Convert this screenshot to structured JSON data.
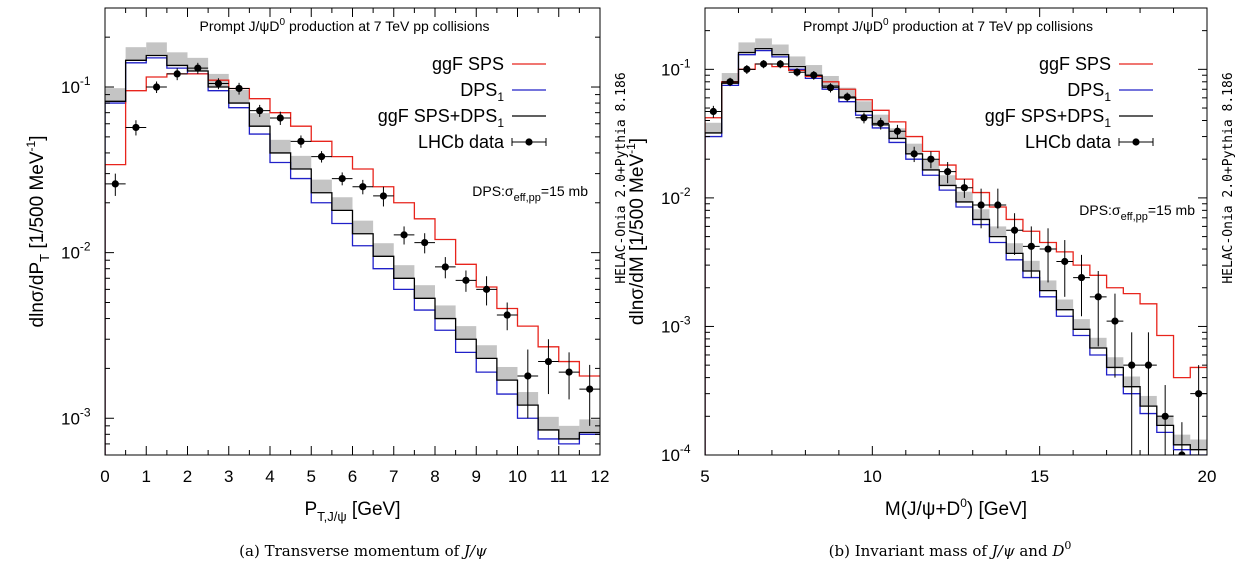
{
  "chart_data": [
    {
      "type": "line",
      "panel_title": "Prompt J/ψD⁰ production at 7 TeV pp collisions",
      "xlabel": "P_T,J/ψ [GeV]",
      "ylabel": "dlnσ/dP_T [1/500 MeV⁻¹]",
      "caption": "(a) Transverse momentum of J/ψ",
      "side_label": "HELAC-Onia 2.0+Pythia 8.186",
      "note": "DPS:σ_eff,pp=15 mb",
      "yscale": "log",
      "xlim": [
        0,
        12
      ],
      "ylim": [
        0.0006,
        0.3
      ],
      "xticks": [
        "0",
        "1",
        "2",
        "3",
        "4",
        "5",
        "6",
        "7",
        "8",
        "9",
        "10",
        "11",
        "12"
      ],
      "yticks": [
        {
          "value": 0.1,
          "label": "10^-1"
        },
        {
          "value": 0.01,
          "label": "10^-2"
        },
        {
          "value": 0.001,
          "label": "10^-3"
        }
      ],
      "bin_edges": [
        0,
        0.5,
        1,
        1.5,
        2,
        2.5,
        3,
        3.5,
        4,
        4.5,
        5,
        5.5,
        6,
        6.5,
        7,
        7.5,
        8,
        8.5,
        9,
        9.5,
        10,
        10.5,
        11,
        11.5,
        12
      ],
      "series": [
        {
          "name": "ggF SPS",
          "color": "#e8241c",
          "values": [
            0.034,
            0.095,
            0.115,
            0.12,
            0.12,
            0.11,
            0.098,
            0.085,
            0.07,
            0.058,
            0.047,
            0.038,
            0.032,
            0.025,
            0.02,
            0.016,
            0.012,
            0.0085,
            0.0062,
            0.0046,
            0.0036,
            0.0027,
            0.0022,
            0.0018
          ]
        },
        {
          "name": "DPS_1",
          "color": "#2020c8",
          "values": [
            0.08,
            0.14,
            0.15,
            0.13,
            0.12,
            0.095,
            0.075,
            0.052,
            0.035,
            0.028,
            0.02,
            0.015,
            0.011,
            0.008,
            0.006,
            0.0045,
            0.0034,
            0.0025,
            0.0019,
            0.0014,
            0.001,
            0.00075,
            0.0007,
            0.0008
          ]
        },
        {
          "name": "ggF SPS+DPS_1",
          "color": "#000000",
          "values": [
            0.082,
            0.145,
            0.155,
            0.135,
            0.125,
            0.1,
            0.08,
            0.058,
            0.04,
            0.032,
            0.023,
            0.018,
            0.013,
            0.0095,
            0.007,
            0.0053,
            0.004,
            0.003,
            0.0023,
            0.0017,
            0.0012,
            0.00085,
            0.00075,
            0.00082
          ]
        },
        {
          "name": "LHCb data",
          "color": "#000000",
          "points": [
            {
              "x": 0.25,
              "y": 0.026,
              "dy": 0.004
            },
            {
              "x": 0.75,
              "y": 0.057,
              "dy": 0.006
            },
            {
              "x": 1.25,
              "y": 0.1,
              "dy": 0.008
            },
            {
              "x": 1.75,
              "y": 0.12,
              "dy": 0.01
            },
            {
              "x": 2.25,
              "y": 0.13,
              "dy": 0.01
            },
            {
              "x": 2.75,
              "y": 0.105,
              "dy": 0.008
            },
            {
              "x": 3.25,
              "y": 0.098,
              "dy": 0.008
            },
            {
              "x": 3.75,
              "y": 0.072,
              "dy": 0.006
            },
            {
              "x": 4.25,
              "y": 0.065,
              "dy": 0.006
            },
            {
              "x": 4.75,
              "y": 0.047,
              "dy": 0.004
            },
            {
              "x": 5.25,
              "y": 0.038,
              "dy": 0.003
            },
            {
              "x": 5.75,
              "y": 0.028,
              "dy": 0.0025
            },
            {
              "x": 6.25,
              "y": 0.025,
              "dy": 0.0025
            },
            {
              "x": 6.75,
              "y": 0.022,
              "dy": 0.003
            },
            {
              "x": 7.25,
              "y": 0.0128,
              "dy": 0.0016
            },
            {
              "x": 7.75,
              "y": 0.0115,
              "dy": 0.0016
            },
            {
              "x": 8.25,
              "y": 0.0082,
              "dy": 0.0012
            },
            {
              "x": 8.75,
              "y": 0.0068,
              "dy": 0.001
            },
            {
              "x": 9.25,
              "y": 0.006,
              "dy": 0.0012
            },
            {
              "x": 9.75,
              "y": 0.0042,
              "dy": 0.0008
            },
            {
              "x": 10.25,
              "y": 0.0018,
              "dy": 0.0008
            },
            {
              "x": 10.75,
              "y": 0.0022,
              "dy": 0.0008
            },
            {
              "x": 11.25,
              "y": 0.0019,
              "dy": 0.0006
            },
            {
              "x": 11.75,
              "y": 0.0015,
              "dy": 0.0006
            }
          ]
        }
      ]
    },
    {
      "type": "line",
      "panel_title": "Prompt J/ψD⁰ production at 7 TeV pp collisions",
      "xlabel": "M(J/ψ+D⁰) [GeV]",
      "ylabel": "dlnσ/dM [1/500 MeV⁻¹]",
      "caption": "(b) Invariant mass of J/ψ and D⁰",
      "side_label": "HELAC-Onia 2.0+Pythia 8.186",
      "note": "DPS:σ_eff,pp=15 mb",
      "yscale": "log",
      "xlim": [
        5,
        20
      ],
      "ylim": [
        0.0001,
        0.3
      ],
      "xticks": [
        "5",
        "10",
        "15",
        "20"
      ],
      "yticks": [
        {
          "value": 0.1,
          "label": "10^-1"
        },
        {
          "value": 0.01,
          "label": "10^-2"
        },
        {
          "value": 0.001,
          "label": "10^-3"
        },
        {
          "value": 0.0001,
          "label": "10^-4"
        }
      ],
      "bin_edges": [
        5,
        5.5,
        6,
        6.5,
        7,
        7.5,
        8,
        8.5,
        9,
        9.5,
        10,
        10.5,
        11,
        11.5,
        12,
        12.5,
        13,
        13.5,
        14,
        14.5,
        15,
        15.5,
        16,
        16.5,
        17,
        17.5,
        18,
        18.5,
        19,
        19.5,
        20
      ],
      "series": [
        {
          "name": "ggF SPS",
          "color": "#e8241c",
          "values": [
            0.042,
            0.08,
            0.1,
            0.11,
            0.105,
            0.098,
            0.088,
            0.08,
            0.07,
            0.058,
            0.048,
            0.039,
            0.03,
            0.023,
            0.018,
            0.014,
            0.011,
            0.0085,
            0.0068,
            0.0055,
            0.0045,
            0.0038,
            0.003,
            0.0025,
            0.002,
            0.0018,
            0.0015,
            0.00085,
            0.0004,
            0.00048
          ]
        },
        {
          "name": "DPS_1",
          "color": "#2020c8",
          "values": [
            0.03,
            0.075,
            0.13,
            0.14,
            0.125,
            0.1,
            0.085,
            0.07,
            0.056,
            0.044,
            0.035,
            0.027,
            0.02,
            0.015,
            0.0115,
            0.0085,
            0.0062,
            0.0045,
            0.0033,
            0.0024,
            0.0017,
            0.0012,
            0.00085,
            0.0006,
            0.00042,
            0.0003,
            0.00021,
            0.00015,
            0.00011,
            0.0001
          ]
        },
        {
          "name": "ggF SPS+DPS_1",
          "color": "#000000",
          "values": [
            0.032,
            0.078,
            0.135,
            0.145,
            0.13,
            0.105,
            0.09,
            0.074,
            0.06,
            0.047,
            0.037,
            0.029,
            0.022,
            0.0165,
            0.0125,
            0.0093,
            0.0068,
            0.005,
            0.0037,
            0.0027,
            0.0019,
            0.00135,
            0.00095,
            0.00068,
            0.00048,
            0.00034,
            0.00024,
            0.00017,
            0.00012,
            0.00011
          ]
        },
        {
          "name": "LHCb data",
          "color": "#000000",
          "points": [
            {
              "x": 5.25,
              "y": 0.047,
              "dy": 0.005
            },
            {
              "x": 5.75,
              "y": 0.08,
              "dy": 0.006
            },
            {
              "x": 6.25,
              "y": 0.1,
              "dy": 0.008
            },
            {
              "x": 6.75,
              "y": 0.11,
              "dy": 0.008
            },
            {
              "x": 7.25,
              "y": 0.11,
              "dy": 0.008
            },
            {
              "x": 7.75,
              "y": 0.095,
              "dy": 0.007
            },
            {
              "x": 8.25,
              "y": 0.09,
              "dy": 0.007
            },
            {
              "x": 8.75,
              "y": 0.072,
              "dy": 0.006
            },
            {
              "x": 9.25,
              "y": 0.061,
              "dy": 0.005
            },
            {
              "x": 9.75,
              "y": 0.042,
              "dy": 0.004
            },
            {
              "x": 10.25,
              "y": 0.038,
              "dy": 0.004
            },
            {
              "x": 10.75,
              "y": 0.033,
              "dy": 0.004
            },
            {
              "x": 11.25,
              "y": 0.022,
              "dy": 0.003
            },
            {
              "x": 11.75,
              "y": 0.02,
              "dy": 0.003
            },
            {
              "x": 12.25,
              "y": 0.016,
              "dy": 0.003
            },
            {
              "x": 12.75,
              "y": 0.012,
              "dy": 0.002
            },
            {
              "x": 13.25,
              "y": 0.0088,
              "dy": 0.003
            },
            {
              "x": 13.75,
              "y": 0.0088,
              "dy": 0.003
            },
            {
              "x": 14.25,
              "y": 0.0056,
              "dy": 0.002
            },
            {
              "x": 14.75,
              "y": 0.0042,
              "dy": 0.0018
            },
            {
              "x": 15.25,
              "y": 0.004,
              "dy": 0.0018
            },
            {
              "x": 15.75,
              "y": 0.0032,
              "dy": 0.0015
            },
            {
              "x": 16.25,
              "y": 0.0024,
              "dy": 0.0012
            },
            {
              "x": 16.75,
              "y": 0.0017,
              "dy": 0.001
            },
            {
              "x": 17.25,
              "y": 0.0011,
              "dy": 0.0007
            },
            {
              "x": 17.75,
              "y": 0.0005,
              "dy": 0.0004
            },
            {
              "x": 18.25,
              "y": 0.0005,
              "dy": 0.0004
            },
            {
              "x": 18.75,
              "y": 0.0002,
              "dy": 0.00015
            },
            {
              "x": 19.25,
              "y": 0.0001,
              "dy": 8e-05
            },
            {
              "x": 19.75,
              "y": 0.0003,
              "dy": 0.0002
            }
          ]
        }
      ]
    }
  ]
}
